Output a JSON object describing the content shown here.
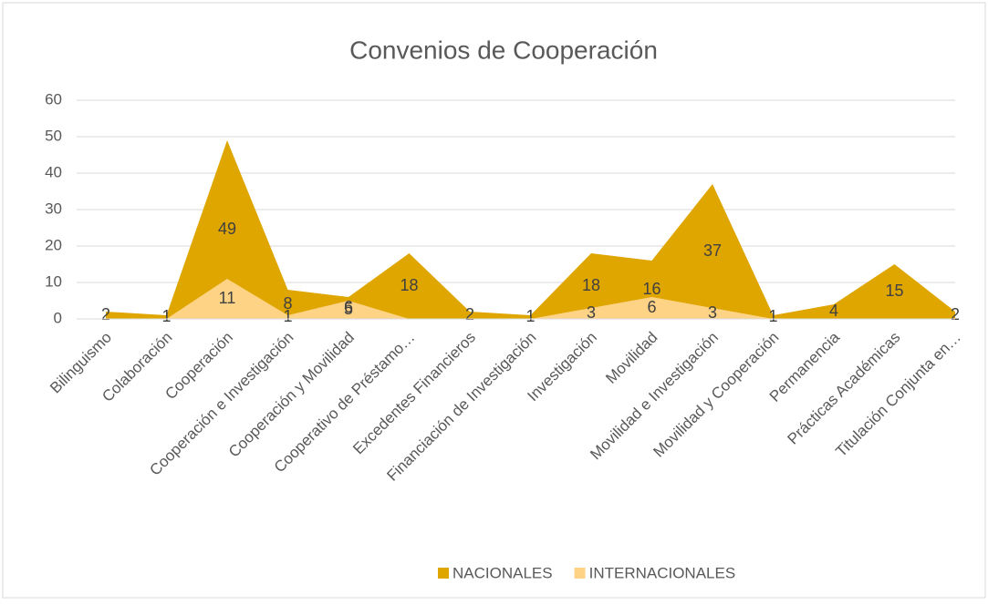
{
  "chart_data": {
    "type": "area",
    "title": "Convenios de Cooperación",
    "categories": [
      "Bilinguismo",
      "Colaboración",
      "Cooperación",
      "Cooperación e Investigación",
      "Cooperación y Movilidad",
      "Cooperativo de Préstamo…",
      "Excedentes Financieros",
      "Financiación de Investigación",
      "Investigación",
      "Movilidad",
      "Movilidad e Investigación",
      "Movilidad y Cooperación",
      "Permanencia",
      "Prácticas Académicas",
      "Titulación Conjunta en…"
    ],
    "series": [
      {
        "name": "NACIONALES",
        "color": "#dfa600",
        "values": [
          2,
          1,
          49,
          8,
          6,
          18,
          2,
          1,
          18,
          16,
          37,
          1,
          4,
          15,
          2
        ]
      },
      {
        "name": "INTERNACIONALES",
        "color": "#ffd386",
        "values": [
          0,
          0,
          11,
          1,
          5,
          0,
          0,
          0,
          3,
          6,
          3,
          0,
          0,
          0,
          0
        ],
        "value_labels": [
          null,
          null,
          "11",
          "1",
          "5",
          null,
          null,
          null,
          "3",
          "6",
          "3",
          null,
          null,
          null,
          null
        ]
      }
    ],
    "ylim": [
      0,
      60
    ],
    "yticks": [
      0,
      10,
      20,
      30,
      40,
      50,
      60
    ],
    "grid": true,
    "legend": "bottom"
  }
}
